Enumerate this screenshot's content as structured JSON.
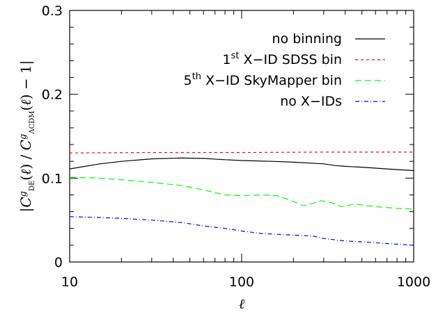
{
  "chart_data": {
    "type": "line",
    "xscale": "log",
    "xlim": [
      10,
      1000
    ],
    "ylim": [
      0,
      0.3
    ],
    "xticks": [
      10,
      100,
      1000
    ],
    "xtick_labels": [
      "10",
      "100",
      "1000"
    ],
    "yticks": [
      0,
      0.1,
      0.2,
      0.3
    ],
    "ytick_labels": [
      "0",
      "0.1",
      "0.2",
      "0.3"
    ],
    "xlabel": "ℓ",
    "ylabel": "|C^g_DE(ℓ) / C^g_ΛCDM(ℓ) − 1|",
    "legend_position": "top-right",
    "grid": false,
    "series": [
      {
        "name": "no binning",
        "color": "#000000",
        "dash": "solid",
        "points": [
          [
            10,
            0.111
          ],
          [
            15,
            0.117
          ],
          [
            20,
            0.12
          ],
          [
            30,
            0.123
          ],
          [
            45,
            0.124
          ],
          [
            60,
            0.1235
          ],
          [
            80,
            0.122
          ],
          [
            100,
            0.121
          ],
          [
            150,
            0.12
          ],
          [
            200,
            0.119
          ],
          [
            300,
            0.117
          ],
          [
            350,
            0.115
          ],
          [
            400,
            0.114
          ],
          [
            500,
            0.113
          ],
          [
            700,
            0.111
          ],
          [
            1000,
            0.109
          ]
        ]
      },
      {
        "name": "1st X-ID SDSS bin",
        "color": "#ff0000",
        "dash": "short",
        "points": [
          [
            10,
            0.13
          ],
          [
            30,
            0.1305
          ],
          [
            100,
            0.1305
          ],
          [
            300,
            0.131
          ],
          [
            1000,
            0.131
          ]
        ]
      },
      {
        "name": "5th X-ID SkyMapper bin",
        "color": "#00ff00",
        "dash": "long",
        "points": [
          [
            10,
            0.101
          ],
          [
            15,
            0.1
          ],
          [
            20,
            0.098
          ],
          [
            30,
            0.095
          ],
          [
            45,
            0.091
          ],
          [
            60,
            0.086
          ],
          [
            80,
            0.08
          ],
          [
            100,
            0.079
          ],
          [
            130,
            0.08
          ],
          [
            160,
            0.079
          ],
          [
            190,
            0.074
          ],
          [
            230,
            0.067
          ],
          [
            260,
            0.07
          ],
          [
            290,
            0.073
          ],
          [
            330,
            0.071
          ],
          [
            380,
            0.066
          ],
          [
            450,
            0.069
          ],
          [
            500,
            0.068
          ],
          [
            600,
            0.066
          ],
          [
            800,
            0.064
          ],
          [
            1000,
            0.063
          ]
        ]
      },
      {
        "name": "no X-IDs",
        "color": "#0000ff",
        "dash": "dashdot",
        "points": [
          [
            10,
            0.054
          ],
          [
            15,
            0.053
          ],
          [
            20,
            0.052
          ],
          [
            30,
            0.05
          ],
          [
            45,
            0.047
          ],
          [
            60,
            0.043
          ],
          [
            80,
            0.04
          ],
          [
            100,
            0.037
          ],
          [
            130,
            0.034
          ],
          [
            160,
            0.033
          ],
          [
            200,
            0.032
          ],
          [
            260,
            0.031
          ],
          [
            300,
            0.028
          ],
          [
            400,
            0.025
          ],
          [
            500,
            0.024
          ],
          [
            700,
            0.022
          ],
          [
            1000,
            0.02
          ]
        ]
      }
    ],
    "legend": [
      {
        "text": "no binning",
        "sup": ""
      },
      {
        "pre": "1",
        "sup": "st",
        "text": " X−ID SDSS bin"
      },
      {
        "pre": "5",
        "sup": "th",
        "text": " X−ID SkyMapper bin"
      },
      {
        "text": "no X−IDs",
        "sup": ""
      }
    ]
  }
}
